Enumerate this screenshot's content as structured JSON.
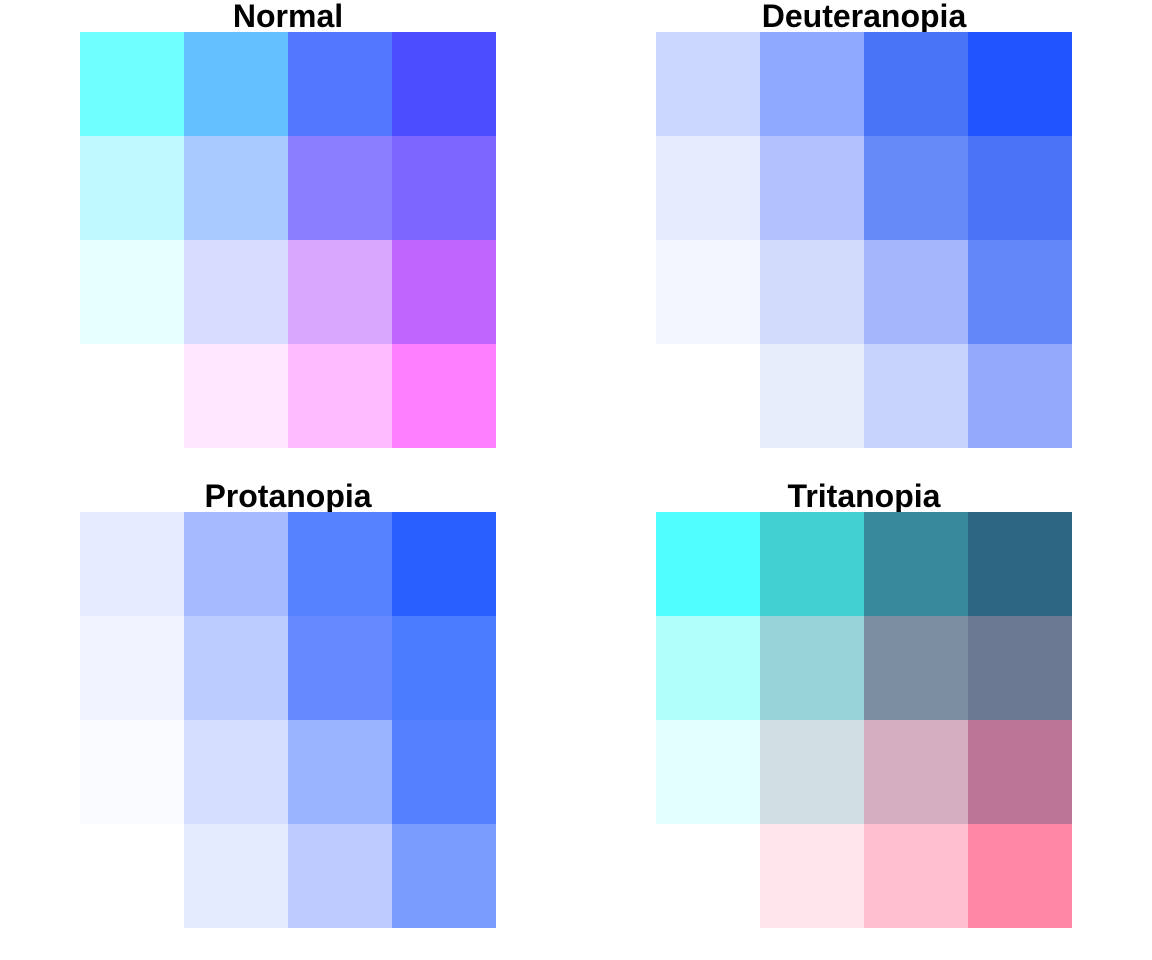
{
  "chart_data": [
    {
      "type": "heatmap",
      "title": "Normal",
      "colors": [
        [
          "#70ffff",
          "#64c0ff",
          "#5477ff",
          "#4c4cff"
        ],
        [
          "#c0faff",
          "#a8caff",
          "#8c7fff",
          "#7d66ff"
        ],
        [
          "#e6ffff",
          "#d8dcff",
          "#d8a8ff",
          "#bf66ff"
        ],
        [
          "#ffffff",
          "#ffe6ff",
          "#ffbbff",
          "#ff80ff"
        ]
      ]
    },
    {
      "type": "heatmap",
      "title": "Deuteranopia",
      "colors": [
        [
          "#ccd7ff",
          "#8fa9ff",
          "#4874f8",
          "#2154ff"
        ],
        [
          "#e6ebfe",
          "#b1c1fd",
          "#668af8",
          "#4b73f8"
        ],
        [
          "#f3f6fe",
          "#d1dbfa",
          "#a5b6fc",
          "#6487f8"
        ],
        [
          "#ffffff",
          "#e8edfa",
          "#c8d3fd",
          "#93a9fb"
        ]
      ]
    },
    {
      "type": "heatmap",
      "title": "Protanopia",
      "colors": [
        [
          "#e6ebff",
          "#a6baff",
          "#5582ff",
          "#2a5fff"
        ],
        [
          "#f1f4ff",
          "#bccbff",
          "#6689ff",
          "#4a7bff"
        ],
        [
          "#fafbff",
          "#d3ddfd",
          "#9ab4ff",
          "#5580ff"
        ],
        [
          "#ffffff",
          "#e5ebfe",
          "#bdcbff",
          "#7b9cff"
        ]
      ]
    },
    {
      "type": "heatmap",
      "title": "Tritanopia",
      "colors": [
        [
          "#4fffff",
          "#42d0d2",
          "#37889b",
          "#2c6683"
        ],
        [
          "#b0fffa",
          "#98d3d9",
          "#7b8ea2",
          "#6b7a92"
        ],
        [
          "#e4ffff",
          "#d0dfe3",
          "#d5aec1",
          "#bb7496"
        ],
        [
          "#ffffff",
          "#ffe6ec",
          "#ffbfcf",
          "#ff88a7"
        ]
      ]
    }
  ]
}
